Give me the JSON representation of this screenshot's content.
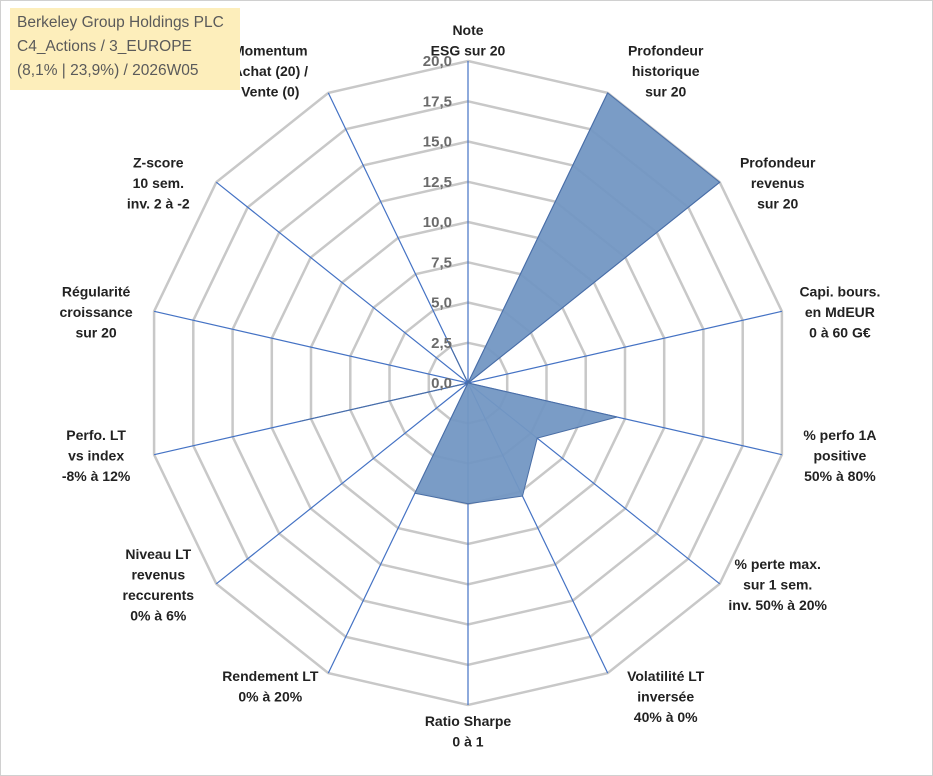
{
  "title_box": {
    "line1": "Berkeley Group Holdings PLC",
    "line2": "C4_Actions / 3_EUROPE",
    "line3": "(8,1% | 23,9%) / 2026W05"
  },
  "chart_data": {
    "type": "radar",
    "rmin": 0,
    "rmax": 20,
    "tick_step": 2.5,
    "tick_labels": [
      "0,0",
      "2,5",
      "5,0",
      "7,5",
      "10,0",
      "12,5",
      "15,0",
      "17,5",
      "20,0"
    ],
    "axes": [
      {
        "lines": [
          "Note",
          "ESG sur 20"
        ]
      },
      {
        "lines": [
          "Profondeur",
          "historique",
          "sur 20"
        ]
      },
      {
        "lines": [
          "Profondeur",
          "revenus",
          "sur 20"
        ]
      },
      {
        "lines": [
          "Capi. bours.",
          "en MdEUR",
          "0 à 60 G€"
        ]
      },
      {
        "lines": [
          "% perfo 1A",
          "positive",
          "50% à 80%"
        ]
      },
      {
        "lines": [
          "% perte max.",
          "sur 1 sem.",
          "inv. 50% à 20%"
        ]
      },
      {
        "lines": [
          "Volatilité LT",
          "inversée",
          "40% à 0%"
        ]
      },
      {
        "lines": [
          "Ratio Sharpe",
          "0 à 1"
        ]
      },
      {
        "lines": [
          "Rendement LT",
          "0% à 20%"
        ]
      },
      {
        "lines": [
          "Niveau LT",
          "revenus",
          "reccurents",
          "0% à 6%"
        ]
      },
      {
        "lines": [
          "Perfo. LT",
          "vs index",
          "-8% à 12%"
        ]
      },
      {
        "lines": [
          "Régularité",
          "croissance",
          "sur 20"
        ]
      },
      {
        "lines": [
          "Z-score",
          "10 sem.",
          "inv. 2 à -2"
        ]
      },
      {
        "lines": [
          "Momentum",
          "Achat (20) /",
          "Vente (0)"
        ]
      }
    ],
    "series": [
      {
        "values": [
          0,
          20,
          20,
          0,
          9.5,
          5.5,
          7.8,
          7.5,
          7.6,
          0,
          10.7,
          0,
          0,
          2.8
        ]
      }
    ],
    "colors": {
      "fill": "#7397c3",
      "stroke": "#4a6ea5",
      "grid": "#c8c8c8",
      "spoke": "#4472c4"
    },
    "grid": true
  }
}
